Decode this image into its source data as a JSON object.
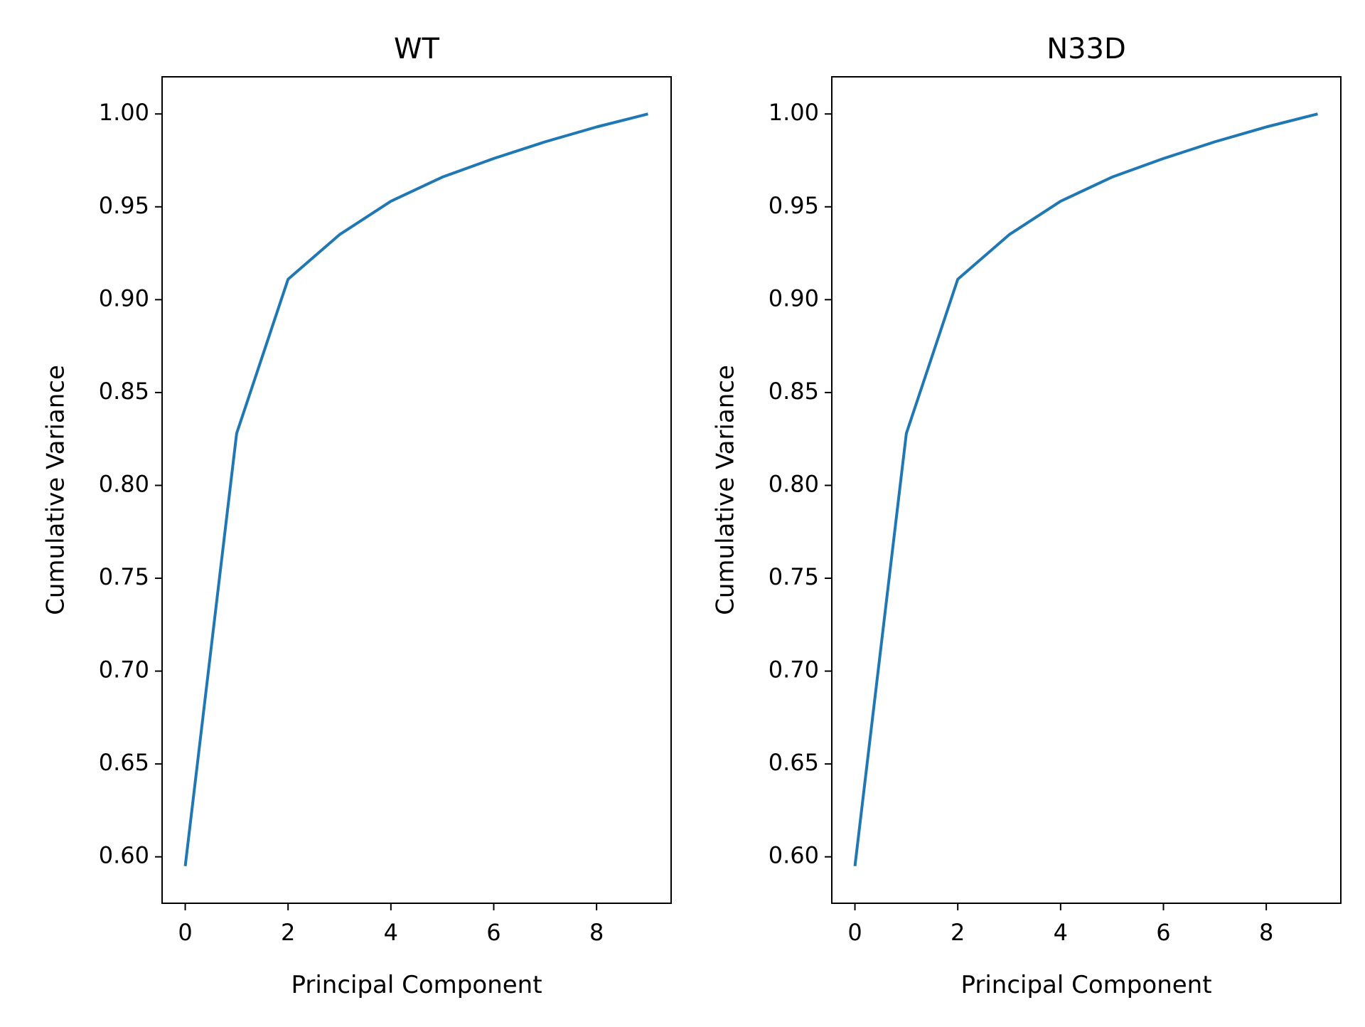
{
  "chart_data": [
    {
      "type": "line",
      "title": "WT",
      "xlabel": "Principal Component",
      "ylabel": "Cumulative Variance",
      "xlim": [
        -0.45,
        9.45
      ],
      "ylim": [
        0.575,
        1.02
      ],
      "xticks": [
        0,
        2,
        4,
        6,
        8
      ],
      "xtick_labels": [
        "0",
        "2",
        "4",
        "6",
        "8"
      ],
      "yticks": [
        0.6,
        0.65,
        0.7,
        0.75,
        0.8,
        0.85,
        0.9,
        0.95,
        1.0
      ],
      "ytick_labels": [
        "0.60",
        "0.65",
        "0.70",
        "0.75",
        "0.80",
        "0.85",
        "0.90",
        "0.95",
        "1.00"
      ],
      "grid": false,
      "series": [
        {
          "color": "#1f77b4",
          "x": [
            0,
            1,
            2,
            3,
            4,
            5,
            6,
            7,
            8,
            9
          ],
          "y": [
            0.595,
            0.828,
            0.911,
            0.935,
            0.953,
            0.966,
            0.976,
            0.985,
            0.993,
            1.0
          ]
        }
      ]
    },
    {
      "type": "line",
      "title": "N33D",
      "xlabel": "Principal Component",
      "ylabel": "Cumulative Variance",
      "xlim": [
        -0.45,
        9.45
      ],
      "ylim": [
        0.575,
        1.02
      ],
      "xticks": [
        0,
        2,
        4,
        6,
        8
      ],
      "xtick_labels": [
        "0",
        "2",
        "4",
        "6",
        "8"
      ],
      "yticks": [
        0.6,
        0.65,
        0.7,
        0.75,
        0.8,
        0.85,
        0.9,
        0.95,
        1.0
      ],
      "ytick_labels": [
        "0.60",
        "0.65",
        "0.70",
        "0.75",
        "0.80",
        "0.85",
        "0.90",
        "0.95",
        "1.00"
      ],
      "grid": false,
      "series": [
        {
          "color": "#1f77b4",
          "x": [
            0,
            1,
            2,
            3,
            4,
            5,
            6,
            7,
            8,
            9
          ],
          "y": [
            0.595,
            0.828,
            0.911,
            0.935,
            0.953,
            0.966,
            0.976,
            0.985,
            0.993,
            1.0
          ]
        }
      ]
    }
  ]
}
